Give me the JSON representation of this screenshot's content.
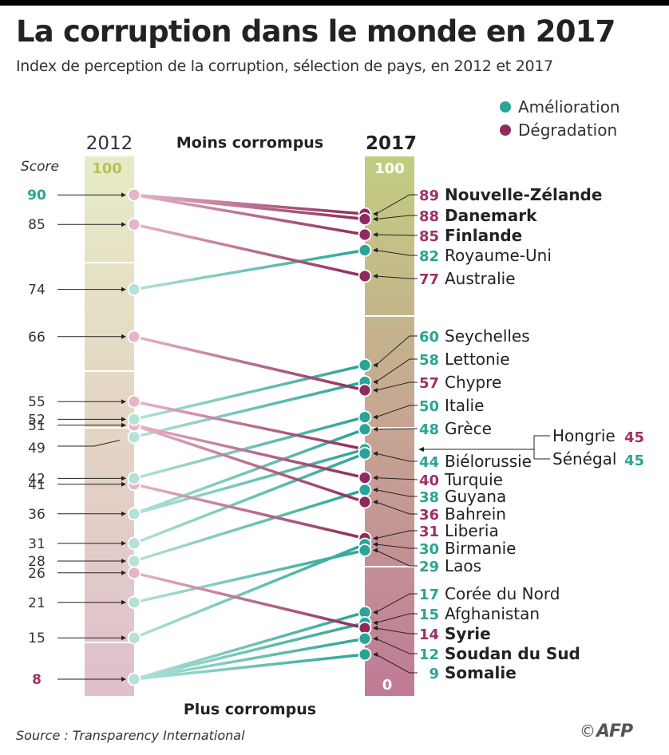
{
  "header": {
    "title": "La corruption dans le monde en 2017",
    "subtitle": "Index de perception de la corruption, sélection de pays, en 2012 et 2017"
  },
  "footer": {
    "source": "Source : Transparency International",
    "credit": "AFP",
    "copyright_symbol": "©"
  },
  "chart_data": {
    "type": "slope",
    "title": "La corruption dans le monde en 2017",
    "subtitle": "Index de perception de la corruption, sélection de pays, en 2012 et 2017",
    "columns": [
      "2012",
      "2017"
    ],
    "top_label": "Moins corrompus",
    "bottom_label": "Plus corrompus",
    "score_label": "Score",
    "scale_top": "100",
    "scale_bottom": "0",
    "ylim": [
      0,
      100
    ],
    "legend": [
      {
        "key": "up",
        "label": "Amélioration",
        "color": "#2aa496"
      },
      {
        "key": "down",
        "label": "Dégradation",
        "color": "#8e2a5c"
      }
    ],
    "colors": {
      "up": "#2aa496",
      "down": "#8e2a5c",
      "up_light": "#b5e1d8",
      "down_light": "#e6b6c8",
      "up_label": "#2aa496",
      "down_label": "#9e3066"
    },
    "countries": [
      {
        "name": "Nouvelle-Zélande",
        "y2012": 90,
        "y2017": 89,
        "trend": "down",
        "bold": true
      },
      {
        "name": "Danemark",
        "y2012": 90,
        "y2017": 88,
        "trend": "down",
        "bold": true
      },
      {
        "name": "Finlande",
        "y2012": 90,
        "y2017": 85,
        "trend": "down",
        "bold": true
      },
      {
        "name": "Royaume-Uni",
        "y2012": 74,
        "y2017": 82,
        "trend": "up",
        "bold": false
      },
      {
        "name": "Australie",
        "y2012": 85,
        "y2017": 77,
        "trend": "down",
        "bold": false
      },
      {
        "name": "Seychelles",
        "y2012": 52,
        "y2017": 60,
        "trend": "up",
        "bold": false
      },
      {
        "name": "Lettonie",
        "y2012": 49,
        "y2017": 58,
        "trend": "up",
        "bold": false
      },
      {
        "name": "Chypre",
        "y2012": 66,
        "y2017": 57,
        "trend": "down",
        "bold": false
      },
      {
        "name": "Italie",
        "y2012": 42,
        "y2017": 50,
        "trend": "up",
        "bold": false
      },
      {
        "name": "Grèce",
        "y2012": 36,
        "y2017": 48,
        "trend": "up",
        "bold": false
      },
      {
        "name": "Hongrie",
        "y2012": 55,
        "y2017": 45,
        "trend": "down",
        "bold": false
      },
      {
        "name": "Sénégal",
        "y2012": 36,
        "y2017": 45,
        "trend": "up",
        "bold": false
      },
      {
        "name": "Biélorussie",
        "y2012": 31,
        "y2017": 44,
        "trend": "up",
        "bold": false
      },
      {
        "name": "Turquie",
        "y2012": 51,
        "y2017": 40,
        "trend": "down",
        "bold": false
      },
      {
        "name": "Guyana",
        "y2012": 28,
        "y2017": 38,
        "trend": "up",
        "bold": false
      },
      {
        "name": "Bahrein",
        "y2012": 51,
        "y2017": 36,
        "trend": "down",
        "bold": false
      },
      {
        "name": "Liberia",
        "y2012": 41,
        "y2017": 31,
        "trend": "down",
        "bold": false
      },
      {
        "name": "Birmanie",
        "y2012": 15,
        "y2017": 30,
        "trend": "up",
        "bold": false
      },
      {
        "name": "Laos",
        "y2012": 21,
        "y2017": 29,
        "trend": "up",
        "bold": false
      },
      {
        "name": "Corée du Nord",
        "y2012": 8,
        "y2017": 17,
        "trend": "up",
        "bold": false
      },
      {
        "name": "Afghanistan",
        "y2012": 8,
        "y2017": 15,
        "trend": "up",
        "bold": false
      },
      {
        "name": "Syrie",
        "y2012": 26,
        "y2017": 14,
        "trend": "down",
        "bold": true
      },
      {
        "name": "Soudan du Sud",
        "y2012": 8,
        "y2017": 12,
        "trend": "up",
        "bold": true
      },
      {
        "name": "Somalie",
        "y2012": 8,
        "y2017": 9,
        "trend": "up",
        "bold": true
      }
    ],
    "left_ticks": [
      {
        "value": 90,
        "label": "90",
        "color": "up"
      },
      {
        "value": 85,
        "label": "85"
      },
      {
        "value": 74,
        "label": "74"
      },
      {
        "value": 66,
        "label": "66"
      },
      {
        "value": 55,
        "label": "55"
      },
      {
        "value": 52,
        "label": "52"
      },
      {
        "value": 51,
        "label": "51"
      },
      {
        "value": 49,
        "label": "49"
      },
      {
        "value": 42,
        "label": "42"
      },
      {
        "value": 41,
        "label": "41"
      },
      {
        "value": 36,
        "label": "36"
      },
      {
        "value": 31,
        "label": "31"
      },
      {
        "value": 28,
        "label": "28"
      },
      {
        "value": 26,
        "label": "26"
      },
      {
        "value": 21,
        "label": "21"
      },
      {
        "value": 15,
        "label": "15"
      },
      {
        "value": 8,
        "label": "8",
        "color": "down"
      }
    ],
    "right_group_labels": [
      "Hongrie",
      "Sénégal"
    ]
  }
}
